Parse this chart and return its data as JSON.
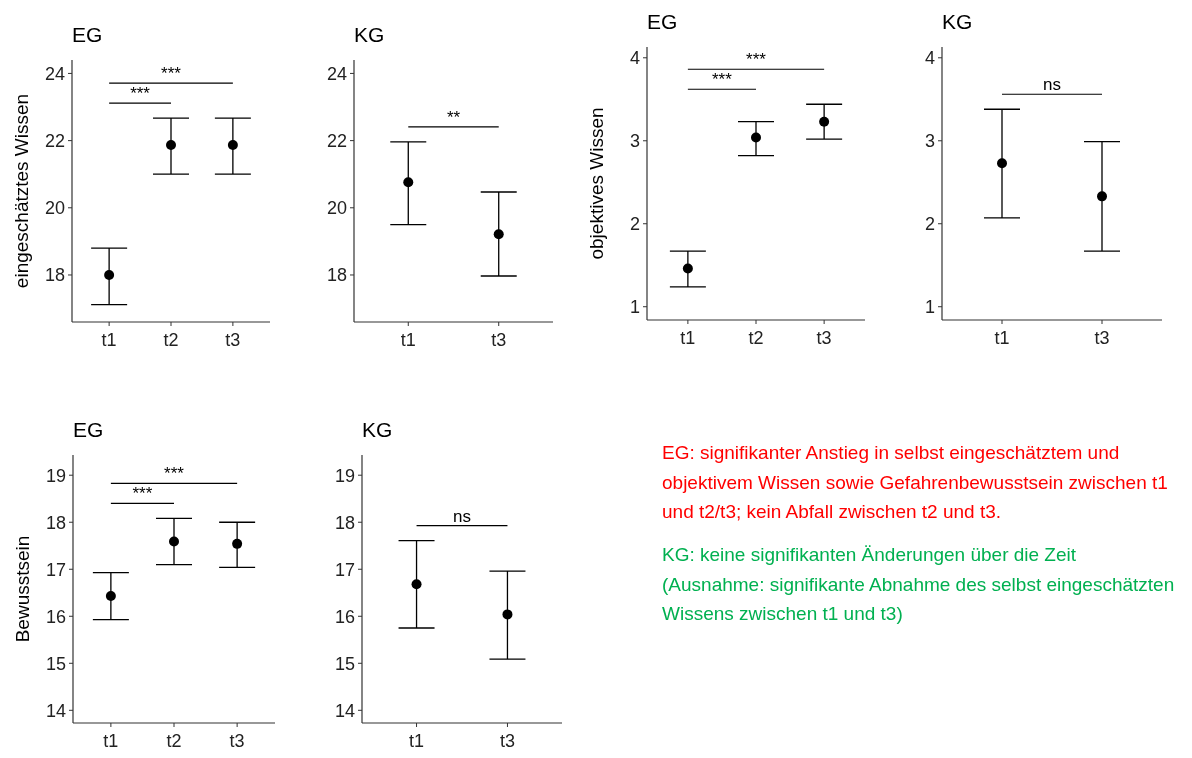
{
  "chart_data": [
    {
      "type": "scatter",
      "title": "EG",
      "ylabel": "eingeschätztes Wissen",
      "categories": [
        "t1",
        "t2",
        "t3"
      ],
      "values": [
        18.0,
        21.87,
        21.87
      ],
      "errors": [
        [
          17.12,
          18.8
        ],
        [
          21.0,
          22.67
        ],
        [
          21.0,
          22.67
        ]
      ],
      "color": "#000000",
      "marker": "circle",
      "ylim": [
        16.6,
        24.4
      ],
      "yticks": [
        18,
        20,
        22,
        24
      ],
      "grid": false,
      "annotations": [
        "***",
        "***"
      ]
    },
    {
      "type": "scatter",
      "title": "KG",
      "categories": [
        "t1",
        "t3"
      ],
      "values": [
        20.76,
        19.21
      ],
      "errors": [
        [
          19.5,
          21.96
        ],
        [
          17.97,
          20.47
        ]
      ],
      "color": "#000000",
      "marker": "circle",
      "ylim": [
        16.6,
        24.4
      ],
      "yticks": [
        18,
        20,
        22,
        24
      ],
      "grid": false,
      "annotations": [
        "**"
      ]
    },
    {
      "type": "scatter",
      "title": "EG",
      "ylabel": "objektives Wissen",
      "categories": [
        "t1",
        "t2",
        "t3"
      ],
      "values": [
        1.46,
        3.04,
        3.23
      ],
      "errors": [
        [
          1.24,
          1.67
        ],
        [
          2.82,
          3.23
        ],
        [
          3.02,
          3.44
        ]
      ],
      "color": "#000000",
      "marker": "circle",
      "ylim": [
        0.84,
        4.13
      ],
      "yticks": [
        1,
        2,
        3,
        4
      ],
      "grid": false,
      "annotations": [
        "***",
        "***"
      ]
    },
    {
      "type": "scatter",
      "title": "KG",
      "categories": [
        "t1",
        "t3"
      ],
      "values": [
        2.73,
        2.33
      ],
      "errors": [
        [
          2.07,
          3.38
        ],
        [
          1.67,
          2.99
        ]
      ],
      "color": "#000000",
      "marker": "circle",
      "ylim": [
        0.84,
        4.13
      ],
      "yticks": [
        1,
        2,
        3,
        4
      ],
      "grid": false,
      "annotations": [
        "ns"
      ]
    },
    {
      "type": "scatter",
      "title": "EG",
      "ylabel": "Bewusstsein",
      "categories": [
        "t1",
        "t2",
        "t3"
      ],
      "values": [
        16.43,
        17.59,
        17.54
      ],
      "errors": [
        [
          15.93,
          16.93
        ],
        [
          17.1,
          18.08
        ],
        [
          17.04,
          18.0
        ]
      ],
      "color": "#000000",
      "marker": "circle",
      "ylim": [
        13.73,
        19.43
      ],
      "yticks": [
        14,
        15,
        16,
        17,
        18,
        19
      ],
      "grid": false,
      "annotations": [
        "***",
        "***"
      ]
    },
    {
      "type": "scatter",
      "title": "KG",
      "categories": [
        "t1",
        "t3"
      ],
      "values": [
        16.68,
        16.04
      ],
      "errors": [
        [
          15.75,
          17.61
        ],
        [
          15.09,
          16.96
        ]
      ],
      "color": "#000000",
      "marker": "circle",
      "ylim": [
        13.73,
        19.43
      ],
      "yticks": [
        14,
        15,
        16,
        17,
        18,
        19
      ],
      "grid": false,
      "annotations": [
        "ns"
      ]
    },
    {
      "type": "other",
      "annotations": [
        "EG: signifikanter Anstieg in selbst eingeschätztem und objektivem Wissen sowie Gefahrenbewusstsein zwischen t1 und t2/t3; kein Abfall zwischen t2 und t3.",
        "KG: keine signifikanten Änderungen über die Zeit (Ausnahme: signifikante Abnahme des selbst eingeschätzten Wissens zwischen t1 und t3)"
      ],
      "colors": [
        "#ff0000",
        "#00b050"
      ]
    }
  ]
}
